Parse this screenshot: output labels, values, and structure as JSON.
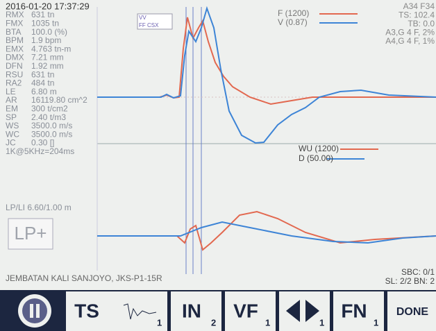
{
  "header": {
    "timestamp": "2016-01-20 17:37:29",
    "icon_top": "VV",
    "icon_bottom": "FF CSX"
  },
  "params": [
    [
      "RMX",
      "631 tn"
    ],
    [
      "FMX",
      "1035 tn"
    ],
    [
      "BTA",
      "100.0 (%)"
    ],
    [
      "BPM",
      "1.9 bpm"
    ],
    [
      "EMX",
      "4.763 tn-m"
    ],
    [
      "DMX",
      "7.21 mm"
    ],
    [
      "DFN",
      "1.92 mm"
    ],
    [
      "RSU",
      "631 tn"
    ],
    [
      "RA2",
      "484 tn"
    ],
    [
      "LE",
      "6.80 m"
    ],
    [
      "AR",
      "16119.80 cm^2"
    ],
    [
      "EM",
      "300 t/cm2"
    ],
    [
      "SP",
      "2.40 t/m3"
    ],
    [
      "WS",
      "3500.0 m/s"
    ],
    [
      "WC",
      "3500.0 m/s"
    ],
    [
      "JC",
      "0.30 []"
    ]
  ],
  "sampling": "1K@5KHz=204ms",
  "top_legend": [
    "F (1200)",
    "V (0.87)"
  ],
  "top_right": [
    "A34 F34",
    "TS: 102.4",
    "TB: 0.0",
    "A3,G 4 F, 2%",
    "A4,G 4 F, 1%"
  ],
  "bottom_legend": [
    "WU (1200)",
    "D (50.00)"
  ],
  "lp_li": "LP/LI 6.60/1.00 m",
  "lp_button": "LP+",
  "footer": {
    "project": "JEMBATAN KALI SANJOYO, JKS-P1-15R",
    "sbc": "SBC: 0/1",
    "sl_bn": "SL: 2/2 BN: 2"
  },
  "toolbar": [
    {
      "label": "TS",
      "sub": ""
    },
    {
      "label": "",
      "sub": "1"
    },
    {
      "label": "IN",
      "sub": "2"
    },
    {
      "label": "VF",
      "sub": "1"
    },
    {
      "label": "",
      "sub": "1"
    },
    {
      "label": "FN",
      "sub": "1"
    },
    {
      "label": "DONE",
      "sub": ""
    }
  ]
}
